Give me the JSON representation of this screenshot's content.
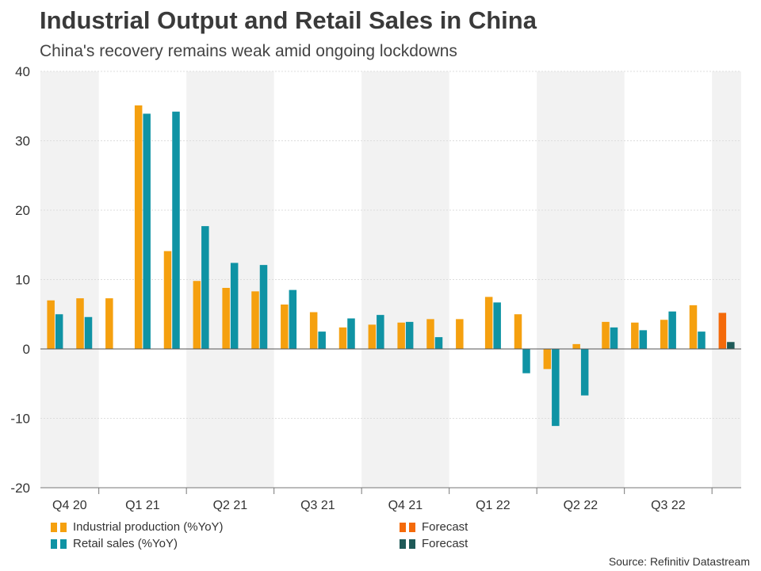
{
  "title": "Industrial Output and Retail Sales in China",
  "subtitle": "China's recovery remains weak amid ongoing lockdowns",
  "source": "Source: Refinitiv Datastream",
  "colors": {
    "industrial": "#f5a00f",
    "retail": "#0f93a4",
    "industrial_forecast": "#f46a0a",
    "retail_forecast": "#1e5a58",
    "band": "#f2f2f2"
  },
  "legend": [
    {
      "label": "Industrial production (%YoY)",
      "colors": [
        "#f5a00f",
        "#f5a00f"
      ]
    },
    {
      "label": "Retail sales (%YoY)",
      "colors": [
        "#0f93a4",
        "#0f93a4"
      ]
    },
    {
      "label": "Forecast",
      "colors": [
        "#f46a0a",
        "#f46a0a"
      ]
    },
    {
      "label": "Forecast",
      "colors": [
        "#1e5a58",
        "#1e5a58"
      ]
    }
  ],
  "chart_data": {
    "type": "bar",
    "ylim": [
      -20,
      40
    ],
    "yticks": [
      -20,
      -10,
      0,
      10,
      20,
      30,
      40
    ],
    "grid": true,
    "legend_position": "bottom",
    "quarters": [
      "Q4 20",
      "Q1 21",
      "Q2 21",
      "Q3 21",
      "Q4 21",
      "Q1 22",
      "Q2 22",
      "Q3 22",
      ""
    ],
    "series": [
      {
        "name": "Industrial production (%YoY)",
        "values": [
          7.0,
          7.3,
          7.3,
          35.1,
          14.1,
          9.8,
          8.8,
          8.3,
          6.4,
          5.3,
          3.1,
          3.5,
          3.8,
          4.3,
          4.3,
          7.5,
          5.0,
          -2.9,
          0.7,
          3.9,
          3.8,
          4.2,
          6.3,
          5.2
        ]
      },
      {
        "name": "Retail sales (%YoY)",
        "values": [
          5.0,
          4.6,
          null,
          33.9,
          34.2,
          17.7,
          12.4,
          12.1,
          8.5,
          2.5,
          4.4,
          4.9,
          3.9,
          1.7,
          null,
          6.7,
          -3.5,
          -11.1,
          -6.7,
          3.1,
          2.7,
          5.4,
          2.5,
          1.0
        ]
      }
    ],
    "forecast_index": 23
  }
}
